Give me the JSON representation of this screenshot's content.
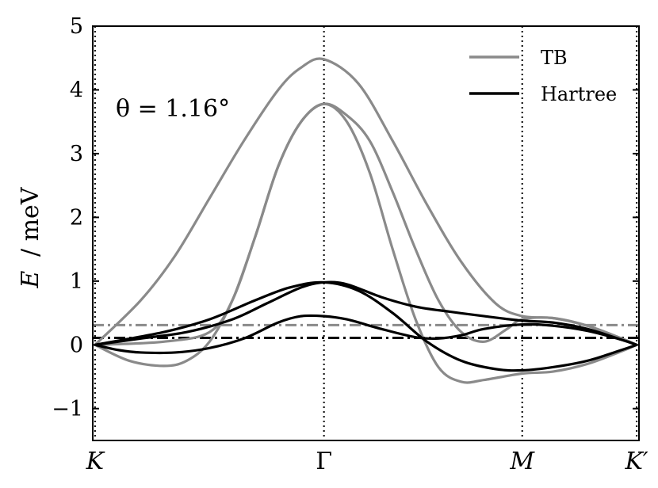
{
  "chart_data": {
    "type": "line",
    "ylabel": {
      "symbol": "E",
      "unit": "/ meV"
    },
    "ylim": [
      -1.5,
      5
    ],
    "yticks": [
      -1,
      0,
      1,
      2,
      3,
      4,
      5
    ],
    "ytick_labels": [
      "−1",
      "0",
      "1",
      "2",
      "3",
      "4",
      "5"
    ],
    "x_kpoints": [
      {
        "label": "K",
        "x": 0,
        "italic": true
      },
      {
        "label": "Γ",
        "x": 1,
        "italic": false
      },
      {
        "label": "M",
        "x": 1.866,
        "italic": true
      },
      {
        "label": "K′",
        "x": 2.366,
        "italic": true
      }
    ],
    "xlim": [
      -0.01,
      2.376
    ],
    "annotation": "θ = 1.16°",
    "legend": {
      "placement": "top-right",
      "entries": [
        "TB",
        "Hartree"
      ]
    },
    "colors": {
      "TB": "#8a8a8a",
      "Hartree": "#000000"
    },
    "reference_lines": [
      {
        "name": "TB",
        "y": 0.31
      },
      {
        "name": "Hartree",
        "y": 0.11
      }
    ],
    "series": [
      {
        "name": "TB",
        "band": 1,
        "x": [
          0,
          0.2,
          0.35,
          0.5,
          0.65,
          0.8,
          0.9,
          1.0,
          1.15,
          1.3,
          1.45,
          1.6,
          1.75,
          1.866,
          2.0,
          2.15,
          2.3,
          2.366
        ],
        "y": [
          0,
          0.7,
          1.4,
          2.3,
          3.2,
          4.0,
          4.35,
          4.48,
          4.1,
          3.2,
          2.2,
          1.3,
          0.65,
          0.45,
          0.42,
          0.3,
          0.1,
          0
        ]
      },
      {
        "name": "TB",
        "band": 2,
        "x": [
          0,
          0.15,
          0.3,
          0.4,
          0.5,
          0.6,
          0.7,
          0.8,
          0.9,
          1.0,
          1.1,
          1.2,
          1.3,
          1.4,
          1.5,
          1.6,
          1.7,
          1.866,
          2.0,
          2.15,
          2.3,
          2.366
        ],
        "y": [
          0,
          -0.25,
          -0.33,
          -0.25,
          0.05,
          0.7,
          1.7,
          2.8,
          3.5,
          3.78,
          3.5,
          2.7,
          1.5,
          0.4,
          -0.35,
          -0.58,
          -0.55,
          -0.45,
          -0.42,
          -0.3,
          -0.1,
          0
        ]
      },
      {
        "name": "TB",
        "band": 3,
        "x": [
          0,
          0.3,
          0.5,
          0.6,
          0.7,
          0.8,
          0.9,
          1.0,
          1.1,
          1.2,
          1.3,
          1.4,
          1.5,
          1.6,
          1.7,
          1.8,
          1.866,
          2.0,
          2.15,
          2.3,
          2.366
        ],
        "y": [
          0,
          0.05,
          0.2,
          0.7,
          1.7,
          2.8,
          3.5,
          3.78,
          3.6,
          3.2,
          2.4,
          1.5,
          0.7,
          0.2,
          0.05,
          0.25,
          0.4,
          0.42,
          0.3,
          0.1,
          0
        ]
      },
      {
        "name": "Hartree",
        "band": 1,
        "x": [
          0,
          0.2,
          0.4,
          0.6,
          0.75,
          0.9,
          1.0,
          1.1,
          1.25,
          1.4,
          1.55,
          1.7,
          1.866,
          2.0,
          2.15,
          2.3,
          2.366
        ],
        "y": [
          0,
          0.1,
          0.2,
          0.4,
          0.65,
          0.9,
          0.98,
          0.95,
          0.75,
          0.6,
          0.52,
          0.45,
          0.38,
          0.35,
          0.25,
          0.08,
          0
        ]
      },
      {
        "name": "Hartree",
        "band": 2,
        "x": [
          0,
          0.1,
          0.2,
          0.35,
          0.5,
          0.65,
          0.8,
          0.9,
          1.0,
          1.1,
          1.25,
          1.4,
          1.5,
          1.6,
          1.7,
          1.866,
          2.0,
          2.15,
          2.3,
          2.366
        ],
        "y": [
          0,
          -0.08,
          -0.12,
          -0.12,
          -0.05,
          0.1,
          0.35,
          0.45,
          0.45,
          0.4,
          0.25,
          0.12,
          0.1,
          0.15,
          0.25,
          0.32,
          0.3,
          0.22,
          0.08,
          0
        ]
      },
      {
        "name": "Hartree",
        "band": 3,
        "x": [
          0,
          0.3,
          0.5,
          0.7,
          0.85,
          1.0,
          1.15,
          1.3,
          1.45,
          1.6,
          1.75,
          1.866,
          2.0,
          2.15,
          2.3,
          2.366
        ],
        "y": [
          0,
          0.2,
          0.4,
          0.7,
          0.9,
          0.98,
          0.85,
          0.5,
          0.05,
          -0.25,
          -0.38,
          -0.4,
          -0.35,
          -0.25,
          -0.08,
          0
        ]
      }
    ]
  }
}
